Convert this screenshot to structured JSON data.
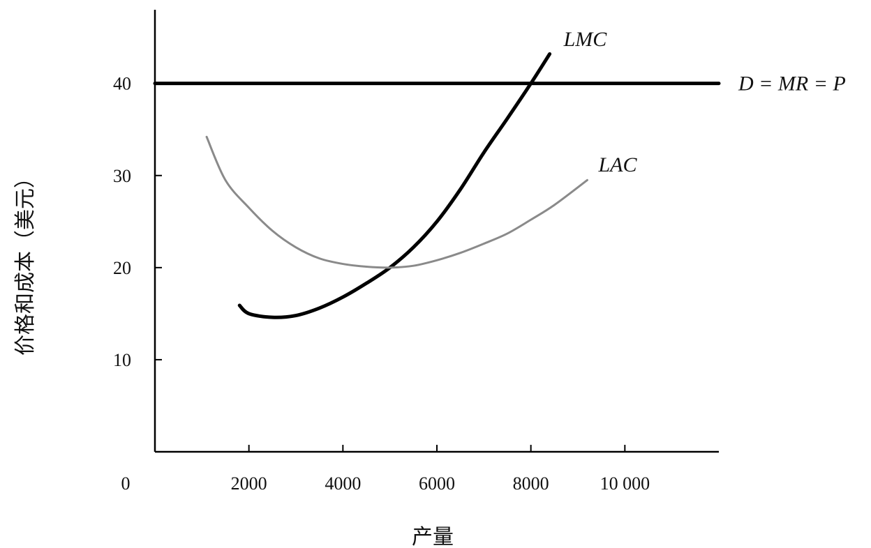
{
  "chart_data": {
    "type": "line",
    "title": "",
    "xlabel": "产量",
    "ylabel": "价格和成本（美元）",
    "xlim": [
      0,
      12000
    ],
    "ylim": [
      0,
      48
    ],
    "x_ticks": [
      2000,
      4000,
      6000,
      8000,
      10000
    ],
    "x_tick_labels": [
      "2000",
      "4000",
      "6000",
      "8000",
      "10 000"
    ],
    "y_ticks": [
      10,
      20,
      30,
      40
    ],
    "y_tick_labels": [
      "10",
      "20",
      "30",
      "40"
    ],
    "origin_label": "0",
    "grid": false,
    "legend": "none",
    "series": [
      {
        "name": "D = MR = P",
        "color": "#000000",
        "x": [
          0,
          12000
        ],
        "y": [
          40,
          40
        ]
      },
      {
        "name": "LMC",
        "color": "#000000",
        "x": [
          1800,
          2000,
          2500,
          3000,
          3500,
          4000,
          4500,
          5000,
          5500,
          6000,
          6500,
          7000,
          7500,
          8000,
          8400
        ],
        "y": [
          15.9,
          15.0,
          14.6,
          14.8,
          15.6,
          16.8,
          18.3,
          20.0,
          22.2,
          25.0,
          28.5,
          32.5,
          36.2,
          40.0,
          43.2
        ]
      },
      {
        "name": "LAC",
        "color": "#8a8a8a",
        "x": [
          1100,
          1500,
          2000,
          2500,
          3000,
          3500,
          4000,
          4500,
          5000,
          5500,
          6000,
          6500,
          7000,
          7500,
          8000,
          8500,
          9200
        ],
        "y": [
          34.2,
          29.5,
          26.5,
          24.0,
          22.2,
          21.0,
          20.4,
          20.1,
          20.0,
          20.2,
          20.8,
          21.6,
          22.6,
          23.7,
          25.2,
          26.8,
          29.5
        ]
      }
    ]
  }
}
